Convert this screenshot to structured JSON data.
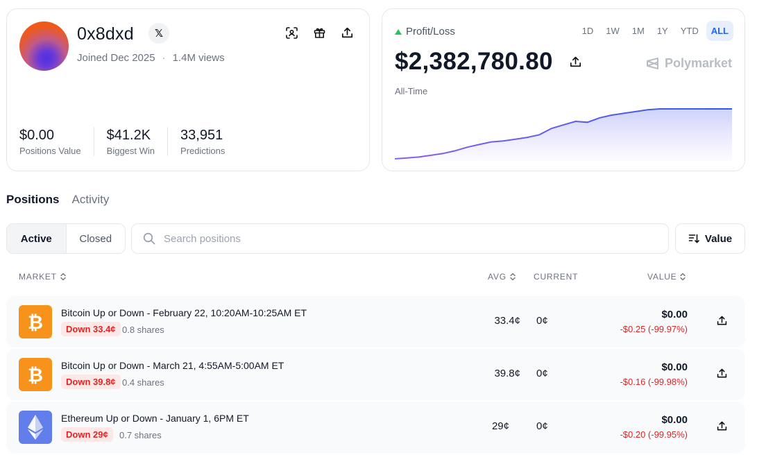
{
  "profile": {
    "username": "0x8dxd",
    "x_badge": "𝕏",
    "joined": "Joined Dec 2025",
    "views": "1.4M views",
    "dot": "·",
    "stats": [
      {
        "value": "$0.00",
        "label": "Positions Value"
      },
      {
        "value": "$41.2K",
        "label": "Biggest Win"
      },
      {
        "value": "33,951",
        "label": "Predictions"
      }
    ],
    "icons": [
      "scan-icon",
      "gift-icon",
      "share-icon"
    ]
  },
  "pnl": {
    "label": "Profit/Loss",
    "value": "$2,382,780.80",
    "period": "All-Time",
    "brand": "Polymarket",
    "ranges": [
      {
        "label": "1D",
        "active": false
      },
      {
        "label": "1W",
        "active": false
      },
      {
        "label": "1M",
        "active": false
      },
      {
        "label": "1Y",
        "active": false
      },
      {
        "label": "YTD",
        "active": false
      },
      {
        "label": "ALL",
        "active": true
      }
    ],
    "colors": {
      "line_start": "#8b5cf6",
      "line_end": "#2f5be0",
      "up": "#22c55e"
    }
  },
  "chart_data": {
    "type": "area",
    "title": "",
    "xlabel": "",
    "ylabel": "",
    "values": [
      2,
      3,
      4,
      6,
      8,
      11,
      15,
      18,
      21,
      22,
      24,
      26,
      29,
      36,
      40,
      44,
      43,
      48,
      51,
      53,
      55,
      57,
      58,
      58,
      58,
      58,
      58,
      58,
      58
    ],
    "grid": false
  },
  "tabs": {
    "positions": "Positions",
    "activity": "Activity"
  },
  "filters": {
    "active": "Active",
    "closed": "Closed",
    "search_placeholder": "Search positions",
    "sort": "Value"
  },
  "table": {
    "headers": {
      "market": "MARKET",
      "avg": "AVG",
      "current": "CURRENT",
      "value": "VALUE"
    },
    "rows": [
      {
        "coin": "bitcoin",
        "title": "Bitcoin Up or Down - February 22, 10:20AM-10:25AM ET",
        "badge": "Down 33.4¢",
        "shares": "0.8 shares",
        "avg": "33.4¢",
        "current": "0¢",
        "value": "$0.00",
        "change": "-$0.25 (-99.97%)"
      },
      {
        "coin": "bitcoin",
        "title": "Bitcoin Up or Down - March 21, 4:55AM-5:00AM ET",
        "badge": "Down 39.8¢",
        "shares": "0.4 shares",
        "avg": "39.8¢",
        "current": "0¢",
        "value": "$0.00",
        "change": "-$0.16 (-99.98%)"
      },
      {
        "coin": "ethereum",
        "title": "Ethereum Up or Down - January 1, 6PM ET",
        "badge": "Down 29¢",
        "shares": "0.7 shares",
        "avg": "29¢",
        "current": "0¢",
        "value": "$0.00",
        "change": "-$0.20 (-99.95%)"
      }
    ],
    "colors": {
      "bitcoin": "#f7931a",
      "ethereum": "#627eea",
      "loss": "#dc2626"
    }
  }
}
